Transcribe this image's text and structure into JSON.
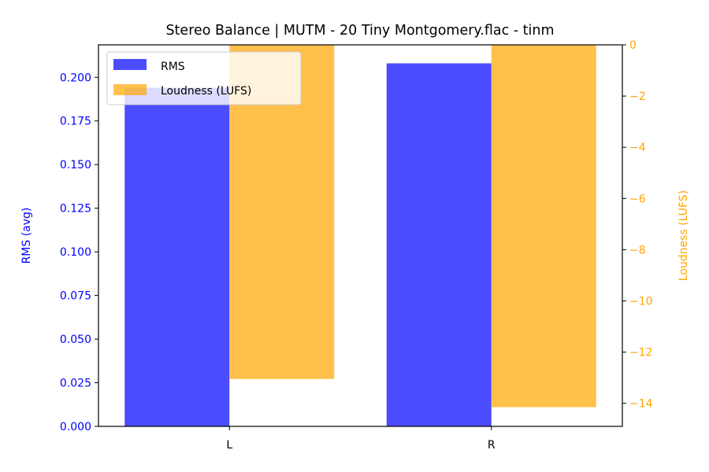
{
  "chart_data": {
    "type": "bar",
    "title": "Stereo Balance | MUTM - 20 Tiny Montgomery.flac - tinm",
    "categories": [
      "L",
      "R"
    ],
    "xlabel": "",
    "left_axis": {
      "label": "RMS (avg)",
      "color": "#0000ff",
      "ylim": [
        0,
        0.2186
      ],
      "ticks": [
        "0.000",
        "0.025",
        "0.050",
        "0.075",
        "0.100",
        "0.125",
        "0.150",
        "0.175",
        "0.200"
      ]
    },
    "right_axis": {
      "label": "Loudness (LUFS)",
      "color": "#ffa500",
      "ylim": [
        -14.9,
        0
      ],
      "ticks": [
        "0",
        "−2",
        "−4",
        "−6",
        "−8",
        "−10",
        "−12",
        "−14"
      ]
    },
    "series": [
      {
        "name": "RMS",
        "axis": "left",
        "color": "#0000ff",
        "opacity": 0.7,
        "values": [
          0.194,
          0.208
        ]
      },
      {
        "name": "Loudness (LUFS)",
        "axis": "right",
        "color": "#ffa500",
        "opacity": 0.7,
        "values": [
          -13.05,
          -14.15
        ]
      }
    ],
    "legend": {
      "placement": "upper-left",
      "entries": [
        "RMS",
        "Loudness (LUFS)"
      ]
    },
    "grid": false
  }
}
